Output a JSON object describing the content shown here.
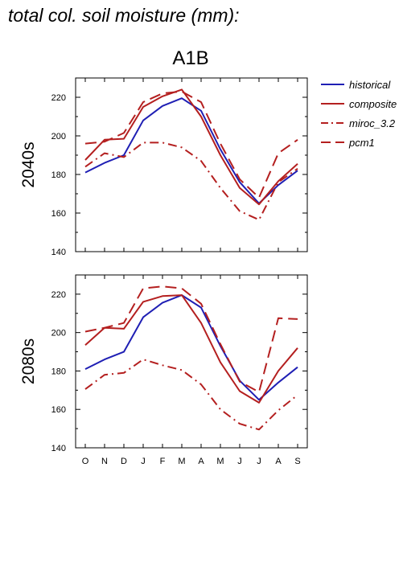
{
  "figure": {
    "title": "total col. soil moisture (mm):",
    "scenario": "A1B"
  },
  "colors": {
    "historical": "#1f1fb4",
    "composite": "#b41f1f",
    "miroc_3.2": "#b41f1f",
    "pcm1": "#b41f1f"
  },
  "legend": [
    {
      "key": "historical",
      "label": "historical",
      "dash": "solid"
    },
    {
      "key": "composite",
      "label": "composite",
      "dash": "solid"
    },
    {
      "key": "miroc_3.2",
      "label": "miroc_3.2",
      "dash": "dashdot"
    },
    {
      "key": "pcm1",
      "label": "pcm1",
      "dash": "dash"
    }
  ],
  "chart_data": [
    {
      "type": "line",
      "ylabel": "2040s",
      "ylim": [
        140,
        230
      ],
      "yticks": [
        140,
        160,
        180,
        200,
        220
      ],
      "categories": [
        "O",
        "N",
        "D",
        "J",
        "F",
        "M",
        "A",
        "M",
        "J",
        "J",
        "A",
        "S"
      ],
      "series": [
        {
          "name": "historical",
          "values": [
            181,
            186,
            190,
            208,
            215.5,
            219.5,
            213,
            193,
            176,
            165,
            174.5,
            182
          ]
        },
        {
          "name": "composite",
          "values": [
            187.5,
            198,
            198.5,
            215,
            220.5,
            224,
            210,
            190,
            173,
            164.5,
            176.5,
            185.5
          ]
        },
        {
          "name": "miroc_3.2",
          "values": [
            184,
            191,
            189,
            196.5,
            196.5,
            194,
            187,
            173,
            161,
            156.5,
            176,
            183
          ]
        },
        {
          "name": "pcm1",
          "values": [
            196,
            197,
            201.5,
            217.5,
            222,
            223,
            217.5,
            196,
            177.5,
            168,
            191,
            198
          ]
        }
      ]
    },
    {
      "type": "line",
      "ylabel": "2080s",
      "ylim": [
        140,
        230
      ],
      "yticks": [
        140,
        160,
        180,
        200,
        220
      ],
      "categories": [
        "O",
        "N",
        "D",
        "J",
        "F",
        "M",
        "A",
        "M",
        "J",
        "J",
        "A",
        "S"
      ],
      "series": [
        {
          "name": "historical",
          "values": [
            181,
            186,
            190,
            208,
            215.5,
            219.5,
            213,
            193,
            175,
            165,
            174,
            182
          ]
        },
        {
          "name": "composite",
          "values": [
            193.5,
            202.5,
            202,
            216,
            219,
            219.5,
            205,
            184.5,
            169.5,
            163.5,
            180,
            192
          ]
        },
        {
          "name": "miroc_3.2",
          "values": [
            170.5,
            178,
            179,
            186,
            183,
            180.5,
            173,
            160,
            152.5,
            149.5,
            159.5,
            167.5
          ]
        },
        {
          "name": "pcm1",
          "values": [
            200.5,
            202.5,
            205,
            223,
            224,
            223,
            215,
            194,
            174.5,
            169,
            207.5,
            207
          ]
        }
      ]
    }
  ]
}
